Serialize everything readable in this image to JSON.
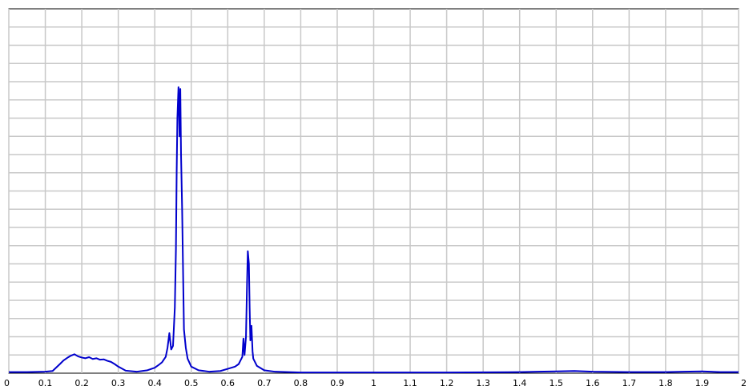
{
  "chart_data": {
    "type": "line",
    "title": "",
    "xlabel": "",
    "ylabel": "",
    "xlim": [
      0,
      2
    ],
    "ylim": [
      0,
      1
    ],
    "x_ticks": [
      "0",
      "0.1",
      "0.2",
      "0.3",
      "0.4",
      "0.5",
      "0.6",
      "0.7",
      "0.8",
      "0.9",
      "1",
      "1.1",
      "1.2",
      "1.3",
      "1.4",
      "1.5",
      "1.6",
      "1.7",
      "1.8",
      "1.9",
      "2"
    ],
    "y_gridlines": 20,
    "grid": true,
    "legend": "none",
    "series": [
      {
        "color": "#0000cc",
        "points": [
          [
            0.0,
            0.003
          ],
          [
            0.05,
            0.003
          ],
          [
            0.1,
            0.004
          ],
          [
            0.12,
            0.006
          ],
          [
            0.14,
            0.025
          ],
          [
            0.15,
            0.035
          ],
          [
            0.16,
            0.042
          ],
          [
            0.17,
            0.048
          ],
          [
            0.18,
            0.052
          ],
          [
            0.19,
            0.046
          ],
          [
            0.2,
            0.043
          ],
          [
            0.21,
            0.041
          ],
          [
            0.22,
            0.044
          ],
          [
            0.23,
            0.039
          ],
          [
            0.24,
            0.041
          ],
          [
            0.25,
            0.037
          ],
          [
            0.26,
            0.038
          ],
          [
            0.27,
            0.034
          ],
          [
            0.28,
            0.031
          ],
          [
            0.29,
            0.025
          ],
          [
            0.3,
            0.018
          ],
          [
            0.32,
            0.007
          ],
          [
            0.35,
            0.004
          ],
          [
            0.38,
            0.008
          ],
          [
            0.4,
            0.015
          ],
          [
            0.41,
            0.022
          ],
          [
            0.42,
            0.03
          ],
          [
            0.43,
            0.045
          ],
          [
            0.435,
            0.07
          ],
          [
            0.44,
            0.11
          ],
          [
            0.445,
            0.065
          ],
          [
            0.45,
            0.075
          ],
          [
            0.455,
            0.18
          ],
          [
            0.458,
            0.34
          ],
          [
            0.46,
            0.55
          ],
          [
            0.462,
            0.7
          ],
          [
            0.465,
            0.785
          ],
          [
            0.468,
            0.65
          ],
          [
            0.47,
            0.78
          ],
          [
            0.472,
            0.6
          ],
          [
            0.475,
            0.45
          ],
          [
            0.478,
            0.25
          ],
          [
            0.48,
            0.12
          ],
          [
            0.485,
            0.07
          ],
          [
            0.49,
            0.04
          ],
          [
            0.5,
            0.018
          ],
          [
            0.52,
            0.008
          ],
          [
            0.55,
            0.004
          ],
          [
            0.58,
            0.006
          ],
          [
            0.6,
            0.012
          ],
          [
            0.62,
            0.018
          ],
          [
            0.63,
            0.025
          ],
          [
            0.635,
            0.035
          ],
          [
            0.64,
            0.045
          ],
          [
            0.643,
            0.095
          ],
          [
            0.646,
            0.05
          ],
          [
            0.65,
            0.1
          ],
          [
            0.653,
            0.25
          ],
          [
            0.655,
            0.335
          ],
          [
            0.658,
            0.3
          ],
          [
            0.66,
            0.18
          ],
          [
            0.662,
            0.09
          ],
          [
            0.665,
            0.13
          ],
          [
            0.668,
            0.06
          ],
          [
            0.67,
            0.04
          ],
          [
            0.68,
            0.02
          ],
          [
            0.7,
            0.008
          ],
          [
            0.73,
            0.004
          ],
          [
            0.8,
            0.002
          ],
          [
            1.0,
            0.002
          ],
          [
            1.2,
            0.002
          ],
          [
            1.4,
            0.003
          ],
          [
            1.45,
            0.004
          ],
          [
            1.5,
            0.005
          ],
          [
            1.55,
            0.006
          ],
          [
            1.6,
            0.004
          ],
          [
            1.7,
            0.003
          ],
          [
            1.8,
            0.003
          ],
          [
            1.85,
            0.004
          ],
          [
            1.9,
            0.005
          ],
          [
            1.95,
            0.003
          ],
          [
            2.0,
            0.003
          ]
        ]
      }
    ]
  }
}
